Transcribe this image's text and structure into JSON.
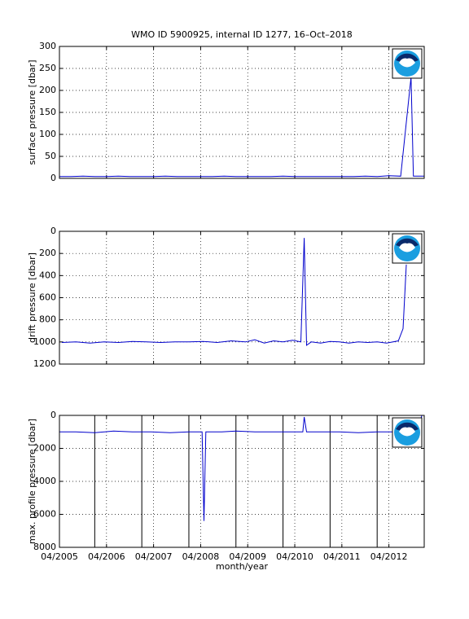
{
  "chart_data": [
    {
      "type": "line",
      "title": "WMO ID 5900925, internal ID 1277, 16–Oct–2018",
      "y_label": "surface pressure [dbar]",
      "x": [
        2005.25,
        2005.5,
        2005.75,
        2006.0,
        2006.25,
        2006.5,
        2006.75,
        2007.0,
        2007.25,
        2007.5,
        2007.75,
        2008.0,
        2008.25,
        2008.5,
        2008.75,
        2009.0,
        2009.25,
        2009.5,
        2009.75,
        2010.0,
        2010.25,
        2010.5,
        2010.75,
        2011.0,
        2011.25,
        2011.5,
        2011.75,
        2012.0,
        2012.25,
        2012.5,
        2012.72,
        2012.74,
        2012.77,
        2013.0
      ],
      "series": [
        {
          "color": "#0000cc",
          "values": [
            4,
            4,
            5,
            4,
            4,
            5,
            4,
            4,
            4,
            5,
            4,
            4,
            4,
            4,
            5,
            4,
            4,
            4,
            4,
            5,
            4,
            4,
            4,
            4,
            4,
            4,
            5,
            4,
            6,
            5,
            230,
            140,
            5,
            5
          ]
        }
      ],
      "xlim": [
        2005.25,
        2013.0
      ],
      "xticks": [
        2005.25,
        2006.25,
        2007.25,
        2008.25,
        2009.25,
        2010.25,
        2011.25,
        2012.25
      ],
      "ylim": [
        0,
        300
      ],
      "yticks": [
        0,
        50,
        100,
        150,
        200,
        250,
        300
      ],
      "grid": true
    },
    {
      "type": "line",
      "y_label": "drift pressure [dbar]",
      "x": [
        2005.3,
        2005.6,
        2005.9,
        2006.2,
        2006.5,
        2006.8,
        2007.1,
        2007.4,
        2007.7,
        2008.0,
        2008.3,
        2008.6,
        2008.9,
        2009.2,
        2009.4,
        2009.6,
        2009.8,
        2010.0,
        2010.2,
        2010.38,
        2010.45,
        2010.5,
        2010.6,
        2010.8,
        2011.0,
        2011.2,
        2011.4,
        2011.6,
        2011.8,
        2012.0,
        2012.2,
        2012.45,
        2012.55,
        2012.62
      ],
      "series": [
        {
          "color": "#0000cc",
          "values": [
            1005,
            1000,
            1010,
            1000,
            1005,
            995,
            1000,
            1005,
            1000,
            1000,
            995,
            1005,
            990,
            1000,
            980,
            1010,
            990,
            1000,
            985,
            1000,
            60,
            1030,
            1000,
            1010,
            995,
            1000,
            1010,
            1000,
            1005,
            1000,
            1010,
            990,
            880,
            300
          ]
        }
      ],
      "xlim": [
        2005.25,
        2013.0
      ],
      "xticks": [
        2005.25,
        2006.25,
        2007.25,
        2008.25,
        2009.25,
        2010.25,
        2011.25,
        2012.25
      ],
      "ylim": [
        1200,
        0
      ],
      "yticks": [
        0,
        200,
        400,
        600,
        800,
        1000,
        1200
      ],
      "grid": true
    },
    {
      "type": "line",
      "y_label": "max. profile pressure [dbar]",
      "x_label": "month/year",
      "x": [
        2005.25,
        2005.6,
        2006.0,
        2006.4,
        2006.8,
        2007.2,
        2007.6,
        2008.0,
        2008.28,
        2008.32,
        2008.36,
        2008.7,
        2009.0,
        2009.4,
        2009.8,
        2010.2,
        2010.42,
        2010.45,
        2010.5,
        2010.8,
        2011.2,
        2011.6,
        2012.0,
        2012.4,
        2012.85,
        2012.95,
        2013.0
      ],
      "series": [
        {
          "color": "#0000cc",
          "values": [
            1000,
            1000,
            1050,
            950,
            1000,
            1000,
            1050,
            1000,
            1000,
            6400,
            1000,
            1000,
            950,
            1000,
            1000,
            1000,
            1000,
            100,
            1000,
            1000,
            1000,
            1050,
            1000,
            1000,
            1000,
            0,
            0
          ]
        }
      ],
      "vlines": [
        2006,
        2007,
        2008,
        2009,
        2010,
        2011,
        2012
      ],
      "xlim": [
        2005.25,
        2013.0
      ],
      "xticks": [
        {
          "value": 2005.25,
          "label": "04/2005"
        },
        {
          "value": 2006.25,
          "label": "04/2006"
        },
        {
          "value": 2007.25,
          "label": "04/2007"
        },
        {
          "value": 2008.25,
          "label": "04/2008"
        },
        {
          "value": 2009.25,
          "label": "04/2009"
        },
        {
          "value": 2010.25,
          "label": "04/2010"
        },
        {
          "value": 2011.25,
          "label": "04/2011"
        },
        {
          "value": 2012.25,
          "label": "04/2012"
        }
      ],
      "ylim": [
        8000,
        0
      ],
      "yticks": [
        0,
        2000,
        4000,
        6000,
        8000
      ],
      "grid": true
    }
  ]
}
